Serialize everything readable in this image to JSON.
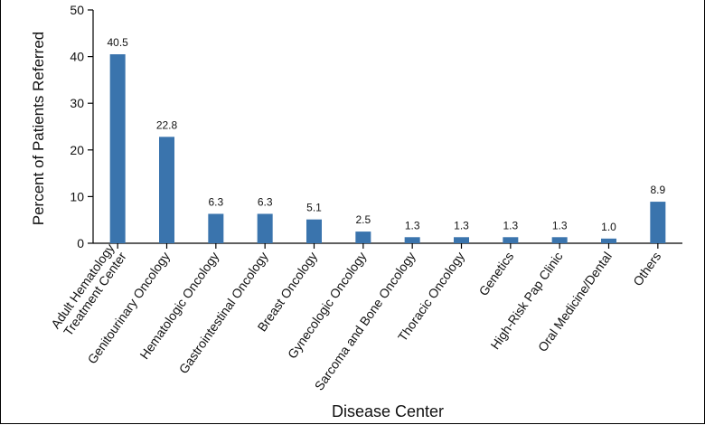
{
  "chart_data": {
    "type": "bar",
    "title": "",
    "xlabel": "Disease Center",
    "ylabel": "Percent of Patients Referred",
    "ylim": [
      0,
      50
    ],
    "yticks": [
      0,
      10,
      20,
      30,
      40,
      50
    ],
    "grid": false,
    "categories": [
      [
        "Adult Hematology",
        "Treatment Center"
      ],
      [
        "Genitourinary Oncology"
      ],
      [
        "Hematologic Oncology"
      ],
      [
        "Gastrointestinal Oncology"
      ],
      [
        "Breast Oncology"
      ],
      [
        "Gynecologic Oncology"
      ],
      [
        "Sarcoma and Bone Oncology"
      ],
      [
        "Thoracic Oncology"
      ],
      [
        "Genetics"
      ],
      [
        "High-Risk Pap Clinic"
      ],
      [
        "Oral Medicine/Dental"
      ],
      [
        "Others"
      ]
    ],
    "values": [
      40.5,
      22.8,
      6.3,
      6.3,
      5.1,
      2.5,
      1.3,
      1.3,
      1.3,
      1.3,
      1.0,
      8.9
    ],
    "value_labels": [
      "40.5",
      "22.8",
      "6.3",
      "6.3",
      "5.1",
      "2.5",
      "1.3",
      "1.3",
      "1.3",
      "1.3",
      "1.0",
      "8.9"
    ],
    "bar_color": "#3a74ad"
  }
}
